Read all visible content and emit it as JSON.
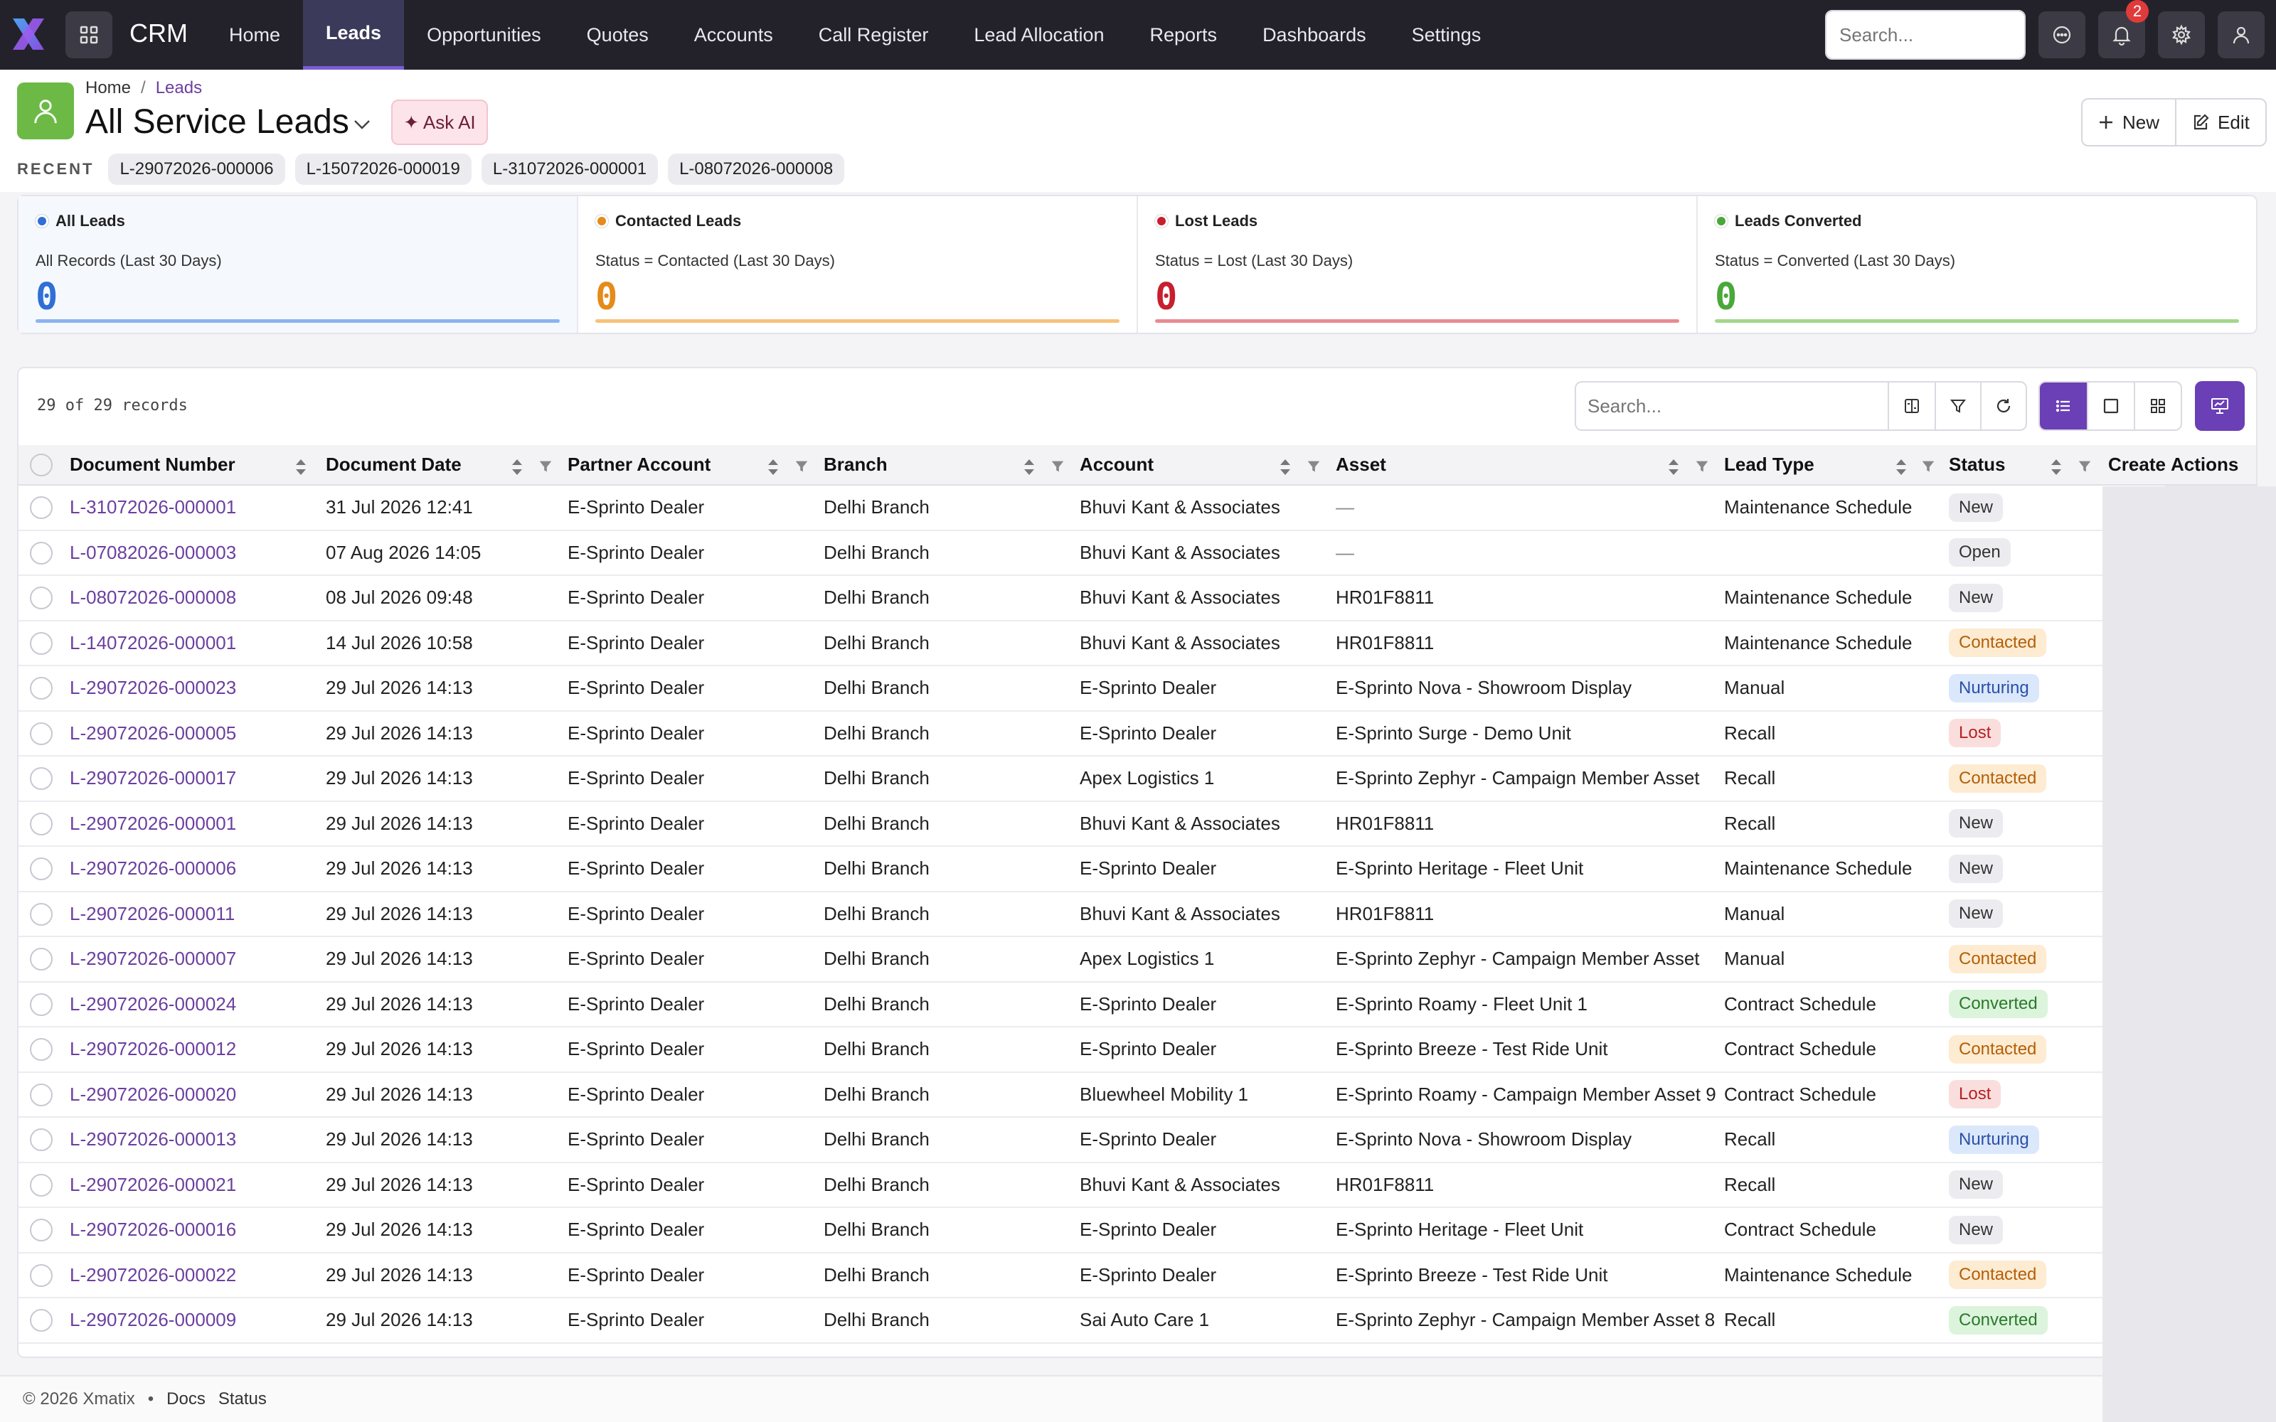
{
  "app": {
    "brand": "CRM",
    "nav": [
      "Home",
      "Leads",
      "Opportunities",
      "Quotes",
      "Accounts",
      "Call Register",
      "Lead Allocation",
      "Reports",
      "Dashboards",
      "Settings"
    ],
    "active_nav": "Leads",
    "search_placeholder": "Search...",
    "notification_count": "2",
    "accent": "#6b3fb6"
  },
  "header": {
    "breadcrumb_home": "Home",
    "breadcrumb_sep": "/",
    "breadcrumb_current": "Leads",
    "title": "All Service Leads",
    "ask_ai": "✦ Ask AI",
    "new_label": "New",
    "edit_label": "Edit",
    "recent_label": "RECENT",
    "recent": [
      "L-29072026-000006",
      "L-15072026-000019",
      "L-31072026-000001",
      "L-08072026-000008"
    ]
  },
  "cards": [
    {
      "title": "All Leads",
      "subtitle": "All Records (Last 30 Days)",
      "value": "0",
      "color": "#2f6fd6",
      "bar": "#8ab4f0"
    },
    {
      "title": "Contacted Leads",
      "subtitle": "Status = Contacted (Last 30 Days)",
      "value": "0",
      "color": "#e68a1a",
      "bar": "#f7c27a"
    },
    {
      "title": "Lost Leads",
      "subtitle": "Status = Lost (Last 30 Days)",
      "value": "0",
      "color": "#c81e2e",
      "bar": "#e98a92"
    },
    {
      "title": "Leads Converted",
      "subtitle": "Status = Converted (Last 30 Days)",
      "value": "0",
      "color": "#4aa83a",
      "bar": "#a4d68c"
    }
  ],
  "table": {
    "record_count": "29 of 29 records",
    "search_placeholder": "Search...",
    "columns": [
      "Document Number",
      "Document Date",
      "Partner Account",
      "Branch",
      "Account",
      "Asset",
      "Lead Type",
      "Status",
      "Create",
      "Actions"
    ],
    "rows": [
      {
        "doc": "L-31072026-000001",
        "date": "31 Jul 2026 12:41",
        "partner": "E-Sprinto Dealer",
        "branch": "Delhi Branch",
        "account": "Bhuvi Kant & Associates",
        "asset": "—",
        "type": "Maintenance Schedule",
        "status": "New"
      },
      {
        "doc": "L-07082026-000003",
        "date": "07 Aug 2026 14:05",
        "partner": "E-Sprinto Dealer",
        "branch": "Delhi Branch",
        "account": "Bhuvi Kant & Associates",
        "asset": "—",
        "type": "",
        "status": "Open"
      },
      {
        "doc": "L-08072026-000008",
        "date": "08 Jul 2026 09:48",
        "partner": "E-Sprinto Dealer",
        "branch": "Delhi Branch",
        "account": "Bhuvi Kant & Associates",
        "asset": "HR01F8811",
        "type": "Maintenance Schedule",
        "status": "New"
      },
      {
        "doc": "L-14072026-000001",
        "date": "14 Jul 2026 10:58",
        "partner": "E-Sprinto Dealer",
        "branch": "Delhi Branch",
        "account": "Bhuvi Kant & Associates",
        "asset": "HR01F8811",
        "type": "Maintenance Schedule",
        "status": "Contacted"
      },
      {
        "doc": "L-29072026-000023",
        "date": "29 Jul 2026 14:13",
        "partner": "E-Sprinto Dealer",
        "branch": "Delhi Branch",
        "account": "E-Sprinto Dealer",
        "asset": "E-Sprinto Nova - Showroom Display",
        "type": "Manual",
        "status": "Nurturing"
      },
      {
        "doc": "L-29072026-000005",
        "date": "29 Jul 2026 14:13",
        "partner": "E-Sprinto Dealer",
        "branch": "Delhi Branch",
        "account": "E-Sprinto Dealer",
        "asset": "E-Sprinto Surge - Demo Unit",
        "type": "Recall",
        "status": "Lost"
      },
      {
        "doc": "L-29072026-000017",
        "date": "29 Jul 2026 14:13",
        "partner": "E-Sprinto Dealer",
        "branch": "Delhi Branch",
        "account": "Apex Logistics 1",
        "asset": "E-Sprinto Zephyr - Campaign Member Asset",
        "type": "Recall",
        "status": "Contacted"
      },
      {
        "doc": "L-29072026-000001",
        "date": "29 Jul 2026 14:13",
        "partner": "E-Sprinto Dealer",
        "branch": "Delhi Branch",
        "account": "Bhuvi Kant & Associates",
        "asset": "HR01F8811",
        "type": "Recall",
        "status": "New"
      },
      {
        "doc": "L-29072026-000006",
        "date": "29 Jul 2026 14:13",
        "partner": "E-Sprinto Dealer",
        "branch": "Delhi Branch",
        "account": "E-Sprinto Dealer",
        "asset": "E-Sprinto Heritage - Fleet Unit",
        "type": "Maintenance Schedule",
        "status": "New"
      },
      {
        "doc": "L-29072026-000011",
        "date": "29 Jul 2026 14:13",
        "partner": "E-Sprinto Dealer",
        "branch": "Delhi Branch",
        "account": "Bhuvi Kant & Associates",
        "asset": "HR01F8811",
        "type": "Manual",
        "status": "New"
      },
      {
        "doc": "L-29072026-000007",
        "date": "29 Jul 2026 14:13",
        "partner": "E-Sprinto Dealer",
        "branch": "Delhi Branch",
        "account": "Apex Logistics 1",
        "asset": "E-Sprinto Zephyr - Campaign Member Asset",
        "type": "Manual",
        "status": "Contacted"
      },
      {
        "doc": "L-29072026-000024",
        "date": "29 Jul 2026 14:13",
        "partner": "E-Sprinto Dealer",
        "branch": "Delhi Branch",
        "account": "E-Sprinto Dealer",
        "asset": "E-Sprinto Roamy - Fleet Unit 1",
        "type": "Contract Schedule",
        "status": "Converted"
      },
      {
        "doc": "L-29072026-000012",
        "date": "29 Jul 2026 14:13",
        "partner": "E-Sprinto Dealer",
        "branch": "Delhi Branch",
        "account": "E-Sprinto Dealer",
        "asset": "E-Sprinto Breeze - Test Ride Unit",
        "type": "Contract Schedule",
        "status": "Contacted"
      },
      {
        "doc": "L-29072026-000020",
        "date": "29 Jul 2026 14:13",
        "partner": "E-Sprinto Dealer",
        "branch": "Delhi Branch",
        "account": "Bluewheel Mobility 1",
        "asset": "E-Sprinto Roamy - Campaign Member Asset 9",
        "type": "Contract Schedule",
        "status": "Lost"
      },
      {
        "doc": "L-29072026-000013",
        "date": "29 Jul 2026 14:13",
        "partner": "E-Sprinto Dealer",
        "branch": "Delhi Branch",
        "account": "E-Sprinto Dealer",
        "asset": "E-Sprinto Nova - Showroom Display",
        "type": "Recall",
        "status": "Nurturing"
      },
      {
        "doc": "L-29072026-000021",
        "date": "29 Jul 2026 14:13",
        "partner": "E-Sprinto Dealer",
        "branch": "Delhi Branch",
        "account": "Bhuvi Kant & Associates",
        "asset": "HR01F8811",
        "type": "Recall",
        "status": "New"
      },
      {
        "doc": "L-29072026-000016",
        "date": "29 Jul 2026 14:13",
        "partner": "E-Sprinto Dealer",
        "branch": "Delhi Branch",
        "account": "E-Sprinto Dealer",
        "asset": "E-Sprinto Heritage - Fleet Unit",
        "type": "Contract Schedule",
        "status": "New"
      },
      {
        "doc": "L-29072026-000022",
        "date": "29 Jul 2026 14:13",
        "partner": "E-Sprinto Dealer",
        "branch": "Delhi Branch",
        "account": "E-Sprinto Dealer",
        "asset": "E-Sprinto Breeze - Test Ride Unit",
        "type": "Maintenance Schedule",
        "status": "Contacted"
      },
      {
        "doc": "L-29072026-000009",
        "date": "29 Jul 2026 14:13",
        "partner": "E-Sprinto Dealer",
        "branch": "Delhi Branch",
        "account": "Sai Auto Care 1",
        "asset": "E-Sprinto Zephyr - Campaign Member Asset 8",
        "type": "Recall",
        "status": "Converted"
      }
    ]
  },
  "footer": {
    "copyright": "© 2026 Xmatix",
    "bullet": "•",
    "docs": "Docs",
    "status": "Status"
  }
}
